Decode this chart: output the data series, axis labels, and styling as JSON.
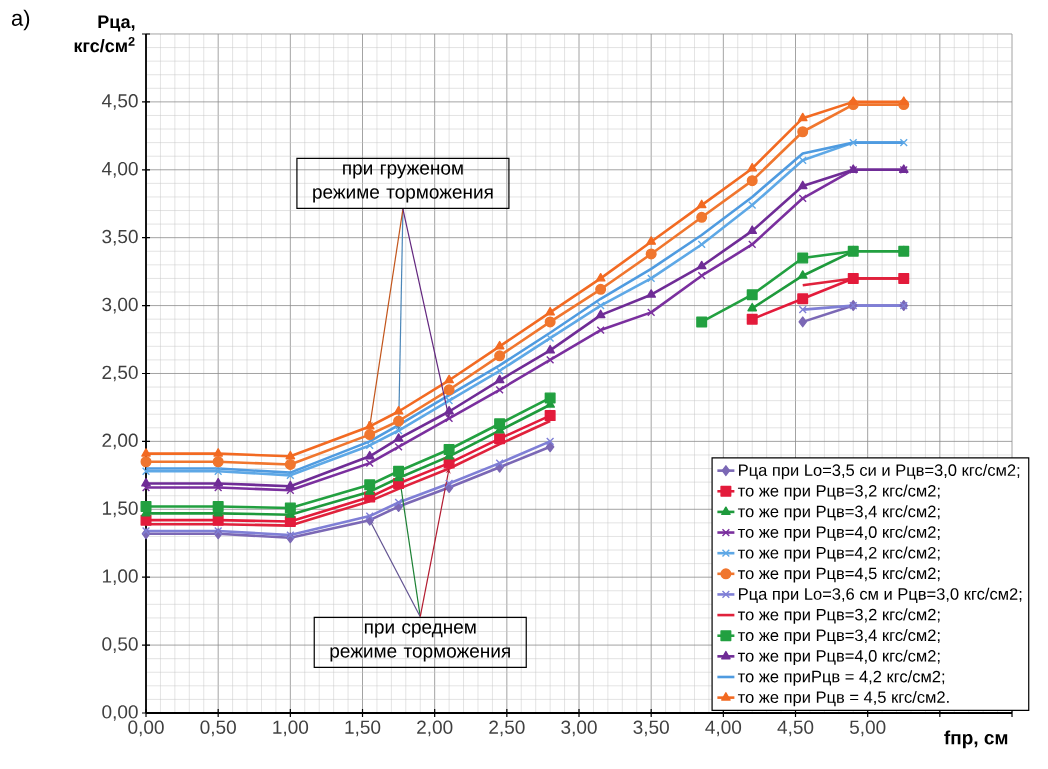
{
  "chart_data": {
    "type": "line",
    "title": "а)",
    "ylabel": "Рца, кгс/см$^{2}$",
    "xlabel": "fпр, см",
    "x": [
      0,
      0.5,
      1.0,
      1.55,
      1.75,
      2.1,
      2.45,
      2.8,
      3.15,
      3.5,
      3.85,
      4.2,
      4.55,
      4.9,
      5.25
    ],
    "xlim": [
      0,
      6
    ],
    "ylim": [
      0,
      5
    ],
    "xticks": [
      {
        "value": 0,
        "label": "0,00"
      },
      {
        "value": 0.5,
        "label": "0,50"
      },
      {
        "value": 1,
        "label": "1,00"
      },
      {
        "value": 1.5,
        "label": "1,50"
      },
      {
        "value": 2,
        "label": "2,00"
      },
      {
        "value": 2.5,
        "label": "2,50"
      },
      {
        "value": 3,
        "label": "3,00"
      },
      {
        "value": 3.5,
        "label": "3,50"
      },
      {
        "value": 4,
        "label": "4,00"
      },
      {
        "value": 4.5,
        "label": "4,50"
      },
      {
        "value": 5,
        "label": "5,00"
      },
      {
        "value": 5.5,
        "label": null
      },
      {
        "value": 6,
        "label": null
      }
    ],
    "yticks": [
      {
        "value": 0,
        "label": "0,00"
      },
      {
        "value": 0.5,
        "label": "0,50"
      },
      {
        "value": 1,
        "label": "1,00"
      },
      {
        "value": 1.5,
        "label": "1,50"
      },
      {
        "value": 2,
        "label": "2,00"
      },
      {
        "value": 2.5,
        "label": "2,50"
      },
      {
        "value": 3,
        "label": "3,00"
      },
      {
        "value": 3.5,
        "label": "3,50"
      },
      {
        "value": 4,
        "label": "4,00"
      },
      {
        "value": 4.5,
        "label": "4,50"
      },
      {
        "value": 5,
        "label": null
      }
    ],
    "grid": true,
    "legend": "bottom right",
    "annotations": [
      {
        "text": "при груженом режиме торможения",
        "x": 1.75,
        "y": 2.08
      },
      {
        "text": "при среднем режиме торможения",
        "x": 1.75,
        "y": 1.78
      }
    ],
    "series": [
      {
        "name": "Рца при Lo=3,5 си и Рцв=3,0 кгс/см2;",
        "color": "#7b68b5",
        "marker": "diamond",
        "values": [
          1.32,
          1.32,
          1.29,
          1.42,
          1.52,
          1.66,
          1.81,
          1.96,
          null,
          null,
          null,
          null,
          2.88,
          3.0,
          3.0
        ]
      },
      {
        "name": "то же при Рцв=3,2 кгс/см2;",
        "color": "#e31b3b",
        "marker": "square",
        "values": [
          1.42,
          1.42,
          1.41,
          1.59,
          1.69,
          1.84,
          2.02,
          2.19,
          null,
          null,
          null,
          2.9,
          3.05,
          3.2,
          3.2
        ]
      },
      {
        "name": "то же при Рцв=3,4 кгс/см2;",
        "color": "#1e9a3c",
        "marker": "triangle",
        "values": [
          1.47,
          1.47,
          1.46,
          1.63,
          1.73,
          1.89,
          2.08,
          2.27,
          null,
          null,
          null,
          2.98,
          3.22,
          3.4,
          3.4
        ]
      },
      {
        "name": "то же при Рцв=4,0 кгс/см2;",
        "color": "#7a2f9e",
        "marker": "cross",
        "values": [
          1.66,
          1.66,
          1.64,
          1.84,
          1.96,
          2.17,
          2.38,
          2.6,
          2.82,
          2.95,
          3.22,
          3.45,
          3.79,
          4.0,
          4.0
        ]
      },
      {
        "name": "то же при Рцв=4,2 кгс/см2;",
        "color": "#5ea8e6",
        "marker": "cross",
        "values": [
          1.78,
          1.78,
          1.75,
          1.97,
          2.08,
          2.3,
          2.52,
          2.76,
          3.0,
          3.2,
          3.45,
          3.74,
          4.07,
          4.2,
          4.2
        ]
      },
      {
        "name": "то же при Рцв=4,5 кгс/см2;",
        "color": "#f0762e",
        "marker": "circle",
        "values": [
          1.85,
          1.85,
          1.83,
          2.05,
          2.15,
          2.38,
          2.63,
          2.88,
          3.12,
          3.38,
          3.65,
          3.92,
          4.28,
          4.48,
          4.48
        ]
      },
      {
        "name": "Рца при Lo=3,6 см и Рцв=3,0 кгс/см2;",
        "color": "#7f7fd6",
        "marker": "cross",
        "values": [
          1.34,
          1.34,
          1.31,
          1.45,
          1.55,
          1.69,
          1.84,
          2.0,
          null,
          null,
          null,
          null,
          2.97,
          3.0,
          3.0
        ]
      },
      {
        "name": "то же при Рцв=3,2 кгс/см2;",
        "color": "#e0223c",
        "marker": "none",
        "values": [
          1.39,
          1.39,
          1.38,
          1.56,
          1.65,
          1.8,
          1.98,
          2.15,
          null,
          null,
          null,
          null,
          3.15,
          3.2,
          3.2
        ]
      },
      {
        "name": "то же при Рцв=3,4 кгс/см2;",
        "color": "#22a040",
        "marker": "square",
        "values": [
          1.52,
          1.52,
          1.51,
          1.68,
          1.78,
          1.94,
          2.13,
          2.32,
          null,
          null,
          2.88,
          3.08,
          3.35,
          3.4,
          3.4
        ]
      },
      {
        "name": "то же при Рцв=4,0 кгс/см2;",
        "color": "#6f2c96",
        "marker": "triangle",
        "values": [
          1.69,
          1.69,
          1.67,
          1.89,
          2.02,
          2.22,
          2.45,
          2.67,
          2.93,
          3.08,
          3.29,
          3.55,
          3.88,
          4.0,
          4.0
        ]
      },
      {
        "name": "то же приРцв = 4,2 кгс/см2;",
        "color": "#4f9be0",
        "marker": "none",
        "values": [
          1.8,
          1.8,
          1.77,
          2.0,
          2.12,
          2.34,
          2.56,
          2.8,
          3.05,
          3.27,
          3.52,
          3.8,
          4.12,
          4.2,
          4.2
        ]
      },
      {
        "name": "то же при Рцв = 4,5 кгс/см2.",
        "color": "#f26a22",
        "marker": "triangle",
        "values": [
          1.91,
          1.91,
          1.89,
          2.11,
          2.22,
          2.45,
          2.7,
          2.95,
          3.2,
          3.47,
          3.74,
          4.01,
          4.38,
          4.5,
          4.5
        ]
      }
    ]
  }
}
